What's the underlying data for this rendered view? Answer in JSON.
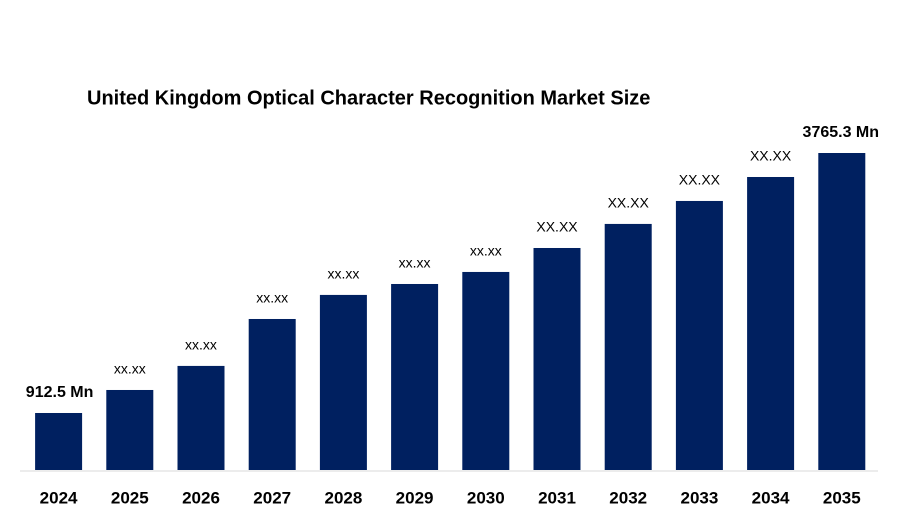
{
  "chart_data": {
    "type": "bar",
    "title": "United Kingdom Optical Character Recognition Market Size",
    "categories": [
      "2024",
      "2025",
      "2026",
      "2027",
      "2028",
      "2029",
      "2030",
      "2031",
      "2032",
      "2033",
      "2034",
      "2035"
    ],
    "values": [
      912.5,
      1165,
      1429,
      1944,
      2208,
      2328,
      2460,
      2723,
      2987,
      3239,
      3502,
      3765.3
    ],
    "value_labels": [
      "912.5 Mn",
      "xx.xx",
      "xx.xx",
      "xx.xx",
      "xx.xx",
      "xx.xx",
      "xx.xx",
      "XX.XX",
      "XX.XX",
      "XX.XX",
      "XX.XX",
      "3765.3 Mn"
    ],
    "color": "#002060",
    "ylim": [
      287,
      3765.3
    ]
  }
}
